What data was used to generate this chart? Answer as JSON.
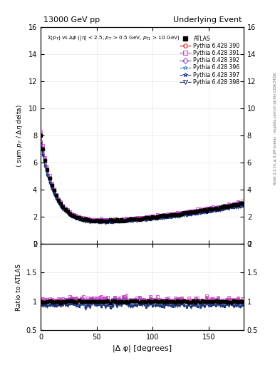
{
  "title_left": "13000 GeV pp",
  "title_right": "Underlying Event",
  "annotation": "Σ(p_{T}) vs Δφ (|η| < 2.5, p_{T} > 0.5 GeV, p_{T1} > 10 GeV)",
  "ylabel_main": "⟨ sum p_{T} / Δη delta⟩",
  "ylabel_ratio": "Ratio to ATLAS",
  "xlabel": "|Δ φ| [degrees]",
  "right_label_top": "Rivet 3.1.10, ≥ 3.2M events",
  "right_label_bot": "mcplots.cern.ch [arXiv:1306.3436]",
  "ylim_main": [
    0,
    16
  ],
  "ylim_ratio": [
    0.5,
    2.0
  ],
  "xlim": [
    0,
    181
  ],
  "yticks_main": [
    0,
    2,
    4,
    6,
    8,
    10,
    12,
    14,
    16
  ],
  "yticks_ratio": [
    0.5,
    1.0,
    1.5,
    2.0
  ],
  "xticks": [
    0,
    50,
    100,
    150
  ],
  "series_labels": [
    "ATLAS",
    "Pythia 6.428 390",
    "Pythia 6.428 391",
    "Pythia 6.428 392",
    "Pythia 6.428 396",
    "Pythia 6.428 397",
    "Pythia 6.428 398"
  ],
  "colors": [
    "#000000",
    "#cc2222",
    "#cc44cc",
    "#8844cc",
    "#4488bb",
    "#223399",
    "#223366"
  ],
  "markers": [
    "s",
    "o",
    "s",
    "D",
    "*",
    "*",
    "v"
  ],
  "linestyles": [
    "none",
    "-.",
    "-.",
    "-.",
    "-.",
    "--",
    "-."
  ],
  "filled": [
    true,
    false,
    false,
    false,
    false,
    false,
    false
  ],
  "scales": [
    1.0,
    1.02,
    1.04,
    1.0,
    0.96,
    0.94,
    0.93
  ],
  "background_color": "#ffffff"
}
